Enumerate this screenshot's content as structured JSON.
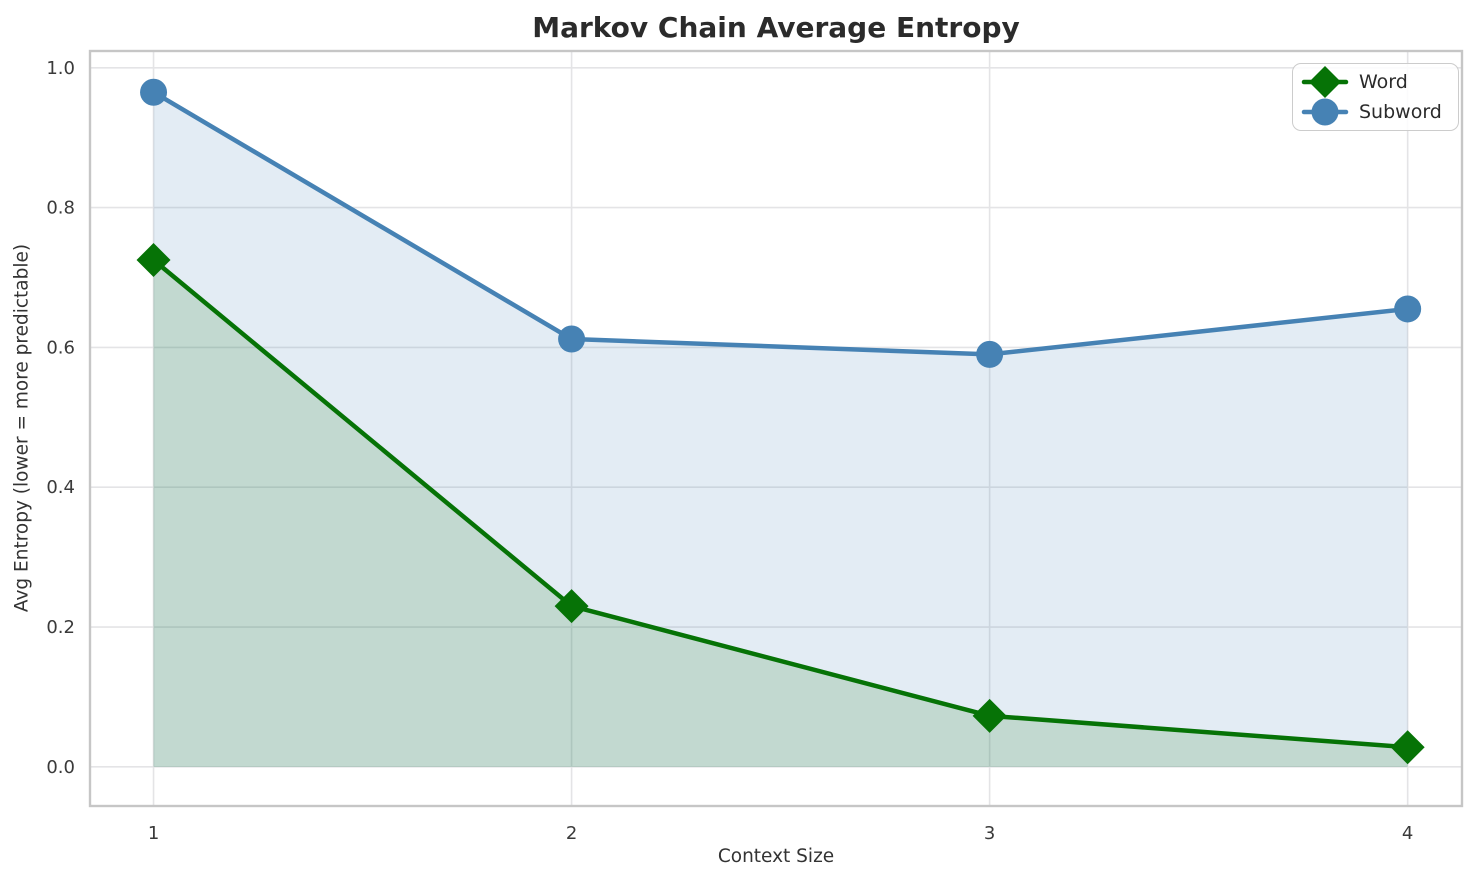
{
  "chart_data": {
    "type": "line",
    "title": "Markov Chain Average Entropy",
    "xlabel": "Context Size",
    "ylabel": "Avg Entropy (lower = more predictable)",
    "x": [
      1,
      2,
      3,
      4
    ],
    "series": [
      {
        "name": "Word",
        "color": "#067306",
        "marker": "diamond",
        "values": [
          0.725,
          0.23,
          0.073,
          0.028
        ]
      },
      {
        "name": "Subword",
        "color": "#4682B4",
        "marker": "circle",
        "values": [
          0.965,
          0.612,
          0.59,
          0.655
        ]
      }
    ],
    "fill_to_zero": true,
    "fill_alpha": 0.15,
    "xticks": [
      1,
      2,
      3,
      4
    ],
    "yticks": [
      0.0,
      0.2,
      0.4,
      0.6,
      0.8,
      1.0
    ],
    "xlim": [
      0.848,
      4.13
    ],
    "ylim": [
      -0.056,
      1.024
    ],
    "grid": true,
    "legend_position": "upper right",
    "colors": {
      "grid": "#e4e4e6",
      "spine": "#c6c6c6",
      "tick_label": "#3a3a3a",
      "title_text": "#2b2b2b"
    }
  }
}
